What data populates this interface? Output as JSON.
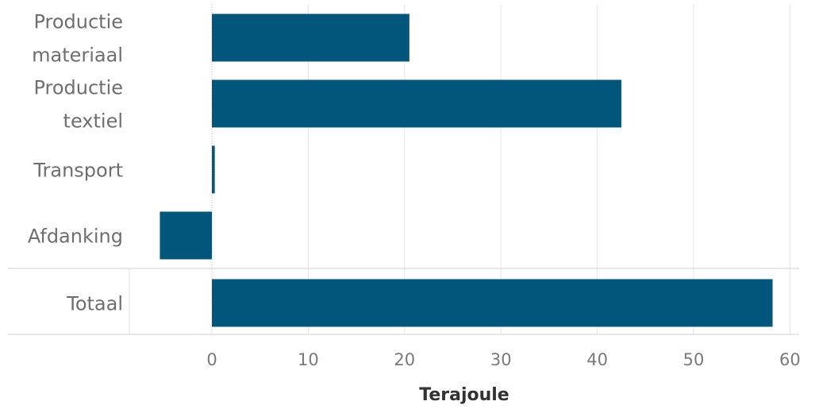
{
  "chart_data": {
    "type": "bar",
    "orientation": "horizontal",
    "categories": [
      [
        "Productie",
        "materiaal"
      ],
      [
        "Productie",
        "textiel"
      ],
      [
        "Transport"
      ],
      [
        "Afdanking"
      ],
      [
        "Totaal"
      ]
    ],
    "values": [
      20.5,
      42.5,
      0.3,
      -5.4,
      58.2
    ],
    "xlabel": "Terajoule",
    "ylabel": "",
    "title": "",
    "xlim": [
      -8.5,
      61
    ],
    "xticks": [
      0,
      10,
      20,
      30,
      40,
      50,
      60
    ],
    "grid": true,
    "bar_color": "#02567c"
  }
}
